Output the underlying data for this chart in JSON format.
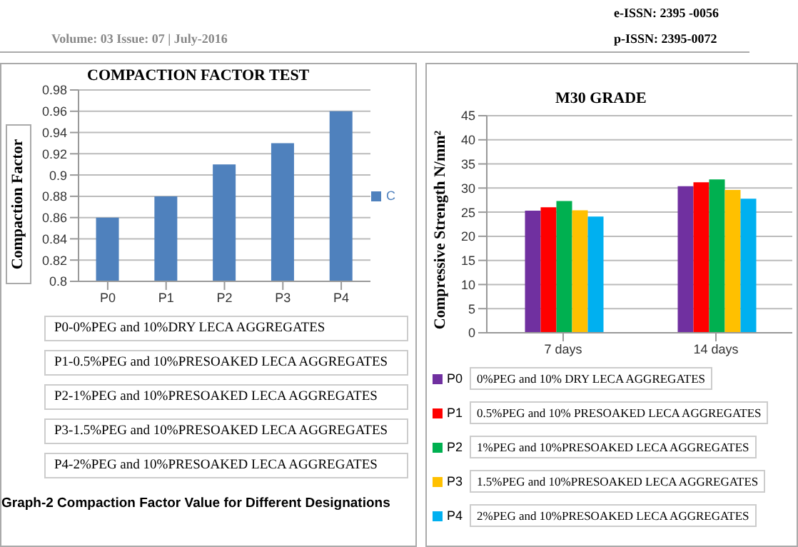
{
  "chart_data": [
    {
      "type": "bar",
      "title": "COMPACTION FACTOR TEST",
      "ylabel": "Compaction Factor",
      "categories": [
        "P0",
        "P1",
        "P2",
        "P3",
        "P4"
      ],
      "series": [
        {
          "name": "C",
          "color": "#4f81bd",
          "values": [
            0.86,
            0.88,
            0.91,
            0.93,
            0.96
          ]
        }
      ],
      "ylim": [
        0.8,
        0.98
      ],
      "yticks": [
        0.8,
        0.82,
        0.84,
        0.86,
        0.88,
        0.9,
        0.92,
        0.94,
        0.96,
        0.98
      ],
      "grid": "y",
      "legend": "right",
      "annotations": [
        "Volume: 03 Issue: 07 | July-2016",
        "e-ISSN: 2395 -0056",
        "p-ISSN: 2395-0072",
        "P0-0%PEG and 10%DRY LECA AGGREGATES",
        "P1-0.5%PEG and 10%PRESOAKED LECA AGGREGATES",
        "P2-1%PEG and 10%PRESOAKED LECA AGGREGATES",
        "P3-1.5%PEG and 10%PRESOAKED LECA AGGREGATES",
        "P4-2%PEG and 10%PRESOAKED LECA AGGREGATES",
        "Graph-2 Compaction Factor Value for Different Designations"
      ]
    },
    {
      "type": "bar",
      "title": "M30 GRADE",
      "ylabel": "Compressive Strength N/mm²",
      "categories": [
        "7 days",
        "14 days"
      ],
      "series": [
        {
          "name": "P0",
          "color": "#7030a0",
          "values": [
            25.3,
            30.4
          ]
        },
        {
          "name": "P1",
          "color": "#ff0000",
          "values": [
            26,
            31.2
          ]
        },
        {
          "name": "P2",
          "color": "#00b050",
          "values": [
            27.3,
            31.8
          ]
        },
        {
          "name": "P3",
          "color": "#ffc000",
          "values": [
            25.4,
            29.6
          ]
        },
        {
          "name": "P4",
          "color": "#00b0f0",
          "values": [
            24.1,
            27.8
          ]
        }
      ],
      "ylim": [
        0,
        45
      ],
      "yticks": [
        0,
        5,
        10,
        15,
        20,
        25,
        30,
        35,
        40,
        45
      ],
      "grid": "y",
      "legend": "bottom",
      "annotations": [
        "0%PEG and 10% DRY LECA AGGREGATES",
        "0.5%PEG and 10% PRESOAKED LECA AGGREGATES",
        "1%PEG and 10%PRESOAKED LECA AGGREGATES",
        "1.5%PEG and 10%PRESOAKED LECA AGGREGATES",
        "2%PEG and 10%PRESOAKED LECA AGGREGATES"
      ]
    }
  ]
}
